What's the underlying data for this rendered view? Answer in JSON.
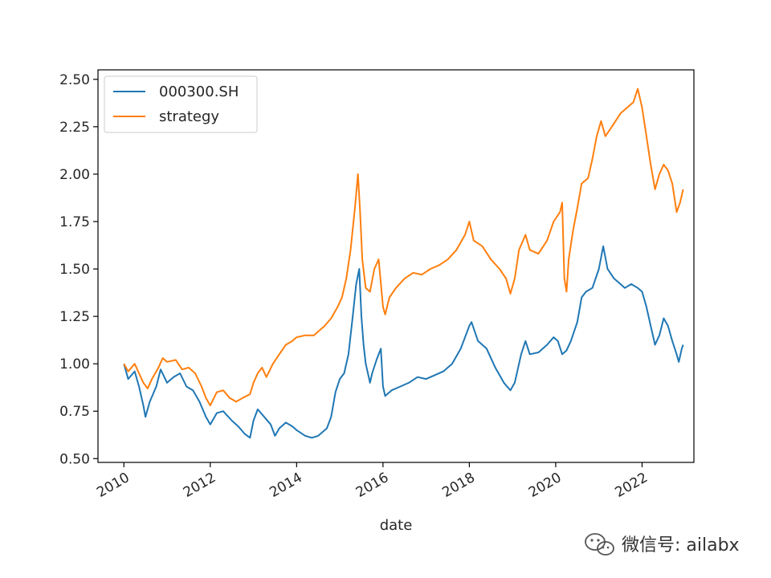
{
  "chart_data": {
    "type": "line",
    "xlabel": "date",
    "ylabel": "",
    "title": "",
    "xlim": [
      2009.4,
      2023.2
    ],
    "ylim": [
      0.48,
      2.55
    ],
    "x_ticks": [
      {
        "value": 2010,
        "label": "2010"
      },
      {
        "value": 2012,
        "label": "2012"
      },
      {
        "value": 2014,
        "label": "2014"
      },
      {
        "value": 2016,
        "label": "2016"
      },
      {
        "value": 2018,
        "label": "2018"
      },
      {
        "value": 2020,
        "label": "2020"
      },
      {
        "value": 2022,
        "label": "2022"
      }
    ],
    "y_ticks": [
      {
        "value": 0.5,
        "label": "0.50"
      },
      {
        "value": 0.75,
        "label": "0.75"
      },
      {
        "value": 1.0,
        "label": "1.00"
      },
      {
        "value": 1.25,
        "label": "1.25"
      },
      {
        "value": 1.5,
        "label": "1.50"
      },
      {
        "value": 1.75,
        "label": "1.75"
      },
      {
        "value": 2.0,
        "label": "2.00"
      },
      {
        "value": 2.25,
        "label": "2.25"
      },
      {
        "value": 2.5,
        "label": "2.50"
      }
    ],
    "grid": false,
    "legend": "upper-left",
    "series": [
      {
        "name": "000300.SH",
        "color": "#1f77b4",
        "points": [
          [
            2010.0,
            1.0
          ],
          [
            2010.1,
            0.92
          ],
          [
            2010.25,
            0.96
          ],
          [
            2010.35,
            0.88
          ],
          [
            2010.45,
            0.78
          ],
          [
            2010.5,
            0.72
          ],
          [
            2010.6,
            0.8
          ],
          [
            2010.75,
            0.88
          ],
          [
            2010.85,
            0.97
          ],
          [
            2011.0,
            0.9
          ],
          [
            2011.15,
            0.93
          ],
          [
            2011.3,
            0.95
          ],
          [
            2011.45,
            0.88
          ],
          [
            2011.6,
            0.86
          ],
          [
            2011.75,
            0.8
          ],
          [
            2011.9,
            0.72
          ],
          [
            2012.0,
            0.68
          ],
          [
            2012.15,
            0.74
          ],
          [
            2012.3,
            0.75
          ],
          [
            2012.5,
            0.7
          ],
          [
            2012.65,
            0.67
          ],
          [
            2012.8,
            0.63
          ],
          [
            2012.92,
            0.61
          ],
          [
            2013.0,
            0.7
          ],
          [
            2013.1,
            0.76
          ],
          [
            2013.25,
            0.72
          ],
          [
            2013.4,
            0.68
          ],
          [
            2013.5,
            0.62
          ],
          [
            2013.6,
            0.66
          ],
          [
            2013.75,
            0.69
          ],
          [
            2013.9,
            0.67
          ],
          [
            2014.0,
            0.65
          ],
          [
            2014.2,
            0.62
          ],
          [
            2014.35,
            0.61
          ],
          [
            2014.5,
            0.62
          ],
          [
            2014.7,
            0.66
          ],
          [
            2014.8,
            0.72
          ],
          [
            2014.9,
            0.85
          ],
          [
            2015.0,
            0.92
          ],
          [
            2015.1,
            0.95
          ],
          [
            2015.2,
            1.05
          ],
          [
            2015.3,
            1.25
          ],
          [
            2015.38,
            1.42
          ],
          [
            2015.45,
            1.5
          ],
          [
            2015.5,
            1.25
          ],
          [
            2015.55,
            1.1
          ],
          [
            2015.6,
            1.0
          ],
          [
            2015.65,
            0.95
          ],
          [
            2015.7,
            0.9
          ],
          [
            2015.75,
            0.95
          ],
          [
            2015.85,
            1.02
          ],
          [
            2015.95,
            1.08
          ],
          [
            2016.0,
            0.88
          ],
          [
            2016.05,
            0.83
          ],
          [
            2016.2,
            0.86
          ],
          [
            2016.4,
            0.88
          ],
          [
            2016.6,
            0.9
          ],
          [
            2016.8,
            0.93
          ],
          [
            2017.0,
            0.92
          ],
          [
            2017.2,
            0.94
          ],
          [
            2017.4,
            0.96
          ],
          [
            2017.6,
            1.0
          ],
          [
            2017.8,
            1.08
          ],
          [
            2018.0,
            1.2
          ],
          [
            2018.05,
            1.22
          ],
          [
            2018.2,
            1.12
          ],
          [
            2018.4,
            1.08
          ],
          [
            2018.6,
            0.98
          ],
          [
            2018.8,
            0.9
          ],
          [
            2018.95,
            0.86
          ],
          [
            2019.05,
            0.9
          ],
          [
            2019.2,
            1.05
          ],
          [
            2019.3,
            1.12
          ],
          [
            2019.4,
            1.05
          ],
          [
            2019.6,
            1.06
          ],
          [
            2019.8,
            1.1
          ],
          [
            2019.95,
            1.14
          ],
          [
            2020.05,
            1.12
          ],
          [
            2020.15,
            1.05
          ],
          [
            2020.25,
            1.07
          ],
          [
            2020.35,
            1.12
          ],
          [
            2020.5,
            1.22
          ],
          [
            2020.6,
            1.35
          ],
          [
            2020.7,
            1.38
          ],
          [
            2020.85,
            1.4
          ],
          [
            2021.0,
            1.5
          ],
          [
            2021.1,
            1.62
          ],
          [
            2021.2,
            1.5
          ],
          [
            2021.35,
            1.45
          ],
          [
            2021.5,
            1.42
          ],
          [
            2021.6,
            1.4
          ],
          [
            2021.75,
            1.42
          ],
          [
            2021.9,
            1.4
          ],
          [
            2022.0,
            1.38
          ],
          [
            2022.1,
            1.3
          ],
          [
            2022.2,
            1.2
          ],
          [
            2022.3,
            1.1
          ],
          [
            2022.4,
            1.15
          ],
          [
            2022.5,
            1.24
          ],
          [
            2022.6,
            1.2
          ],
          [
            2022.7,
            1.12
          ],
          [
            2022.8,
            1.05
          ],
          [
            2022.85,
            1.01
          ],
          [
            2022.92,
            1.08
          ],
          [
            2022.95,
            1.1
          ]
        ]
      },
      {
        "name": "strategy",
        "color": "#ff7f0e",
        "points": [
          [
            2010.0,
            1.0
          ],
          [
            2010.1,
            0.96
          ],
          [
            2010.25,
            1.0
          ],
          [
            2010.35,
            0.95
          ],
          [
            2010.45,
            0.9
          ],
          [
            2010.55,
            0.87
          ],
          [
            2010.65,
            0.92
          ],
          [
            2010.8,
            0.98
          ],
          [
            2010.9,
            1.03
          ],
          [
            2011.0,
            1.01
          ],
          [
            2011.2,
            1.02
          ],
          [
            2011.35,
            0.97
          ],
          [
            2011.5,
            0.98
          ],
          [
            2011.65,
            0.95
          ],
          [
            2011.8,
            0.88
          ],
          [
            2011.9,
            0.82
          ],
          [
            2012.0,
            0.78
          ],
          [
            2012.15,
            0.85
          ],
          [
            2012.3,
            0.86
          ],
          [
            2012.45,
            0.82
          ],
          [
            2012.6,
            0.8
          ],
          [
            2012.75,
            0.82
          ],
          [
            2012.92,
            0.84
          ],
          [
            2013.0,
            0.9
          ],
          [
            2013.1,
            0.95
          ],
          [
            2013.2,
            0.98
          ],
          [
            2013.3,
            0.93
          ],
          [
            2013.45,
            1.0
          ],
          [
            2013.6,
            1.05
          ],
          [
            2013.75,
            1.1
          ],
          [
            2013.9,
            1.12
          ],
          [
            2014.0,
            1.14
          ],
          [
            2014.2,
            1.15
          ],
          [
            2014.4,
            1.15
          ],
          [
            2014.5,
            1.17
          ],
          [
            2014.65,
            1.2
          ],
          [
            2014.8,
            1.24
          ],
          [
            2014.95,
            1.3
          ],
          [
            2015.05,
            1.35
          ],
          [
            2015.15,
            1.45
          ],
          [
            2015.25,
            1.6
          ],
          [
            2015.35,
            1.82
          ],
          [
            2015.42,
            2.0
          ],
          [
            2015.47,
            1.8
          ],
          [
            2015.52,
            1.55
          ],
          [
            2015.6,
            1.4
          ],
          [
            2015.7,
            1.38
          ],
          [
            2015.8,
            1.5
          ],
          [
            2015.9,
            1.55
          ],
          [
            2016.0,
            1.3
          ],
          [
            2016.05,
            1.26
          ],
          [
            2016.15,
            1.35
          ],
          [
            2016.3,
            1.4
          ],
          [
            2016.5,
            1.45
          ],
          [
            2016.7,
            1.48
          ],
          [
            2016.9,
            1.47
          ],
          [
            2017.1,
            1.5
          ],
          [
            2017.3,
            1.52
          ],
          [
            2017.5,
            1.55
          ],
          [
            2017.7,
            1.6
          ],
          [
            2017.9,
            1.68
          ],
          [
            2018.0,
            1.75
          ],
          [
            2018.1,
            1.65
          ],
          [
            2018.3,
            1.62
          ],
          [
            2018.5,
            1.55
          ],
          [
            2018.7,
            1.5
          ],
          [
            2018.85,
            1.45
          ],
          [
            2018.95,
            1.37
          ],
          [
            2019.05,
            1.45
          ],
          [
            2019.15,
            1.6
          ],
          [
            2019.3,
            1.68
          ],
          [
            2019.4,
            1.6
          ],
          [
            2019.6,
            1.58
          ],
          [
            2019.8,
            1.65
          ],
          [
            2019.95,
            1.75
          ],
          [
            2020.1,
            1.8
          ],
          [
            2020.15,
            1.85
          ],
          [
            2020.2,
            1.45
          ],
          [
            2020.25,
            1.38
          ],
          [
            2020.3,
            1.55
          ],
          [
            2020.4,
            1.7
          ],
          [
            2020.5,
            1.82
          ],
          [
            2020.6,
            1.95
          ],
          [
            2020.75,
            1.98
          ],
          [
            2020.85,
            2.08
          ],
          [
            2020.95,
            2.2
          ],
          [
            2021.05,
            2.28
          ],
          [
            2021.15,
            2.2
          ],
          [
            2021.3,
            2.25
          ],
          [
            2021.5,
            2.32
          ],
          [
            2021.65,
            2.35
          ],
          [
            2021.8,
            2.38
          ],
          [
            2021.9,
            2.45
          ],
          [
            2022.0,
            2.35
          ],
          [
            2022.1,
            2.2
          ],
          [
            2022.2,
            2.05
          ],
          [
            2022.3,
            1.92
          ],
          [
            2022.4,
            2.0
          ],
          [
            2022.5,
            2.05
          ],
          [
            2022.6,
            2.02
          ],
          [
            2022.7,
            1.95
          ],
          [
            2022.8,
            1.8
          ],
          [
            2022.88,
            1.85
          ],
          [
            2022.95,
            1.92
          ]
        ]
      }
    ]
  },
  "watermark": {
    "text": "微信号: ailabx",
    "icon": "wechat-icon"
  }
}
